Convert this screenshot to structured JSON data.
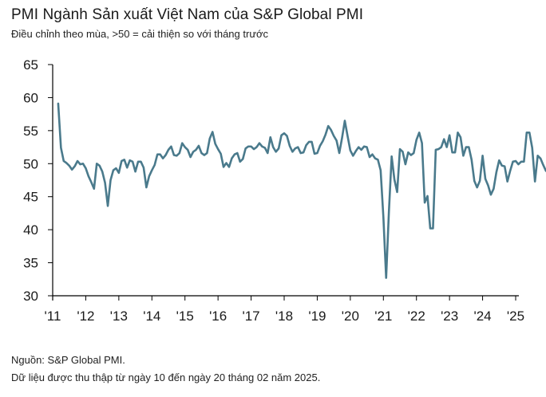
{
  "title": "PMI Ngành Sản xuất Việt Nam của S&P Global PMI",
  "subtitle": "Điều chỉnh theo mùa, >50 = cải thiện so với tháng trước",
  "footnote_source": "Nguồn: S&P Global PMI.",
  "footnote_collection": "Dữ liệu được thu thập từ ngày 10 đến ngày 20 tháng 02 năm 2025.",
  "colors": {
    "line": "#4a7a8c",
    "axis": "#000000"
  },
  "chart_data": {
    "type": "line",
    "title": "PMI Ngành Sản xuất Việt Nam của S&P Global PMI",
    "xlabel": "",
    "ylabel": "",
    "ylim": [
      30,
      65
    ],
    "yticks": [
      30,
      35,
      40,
      45,
      50,
      55,
      60,
      65
    ],
    "xtick_labels": [
      "'11",
      "'12",
      "'13",
      "'14",
      "'15",
      "'16",
      "'17",
      "'18",
      "'19",
      "'20",
      "'21",
      "'22",
      "'23",
      "'24",
      "'25"
    ],
    "grid": false,
    "series": [
      {
        "name": "",
        "start": "2011-03",
        "frequency": "monthly",
        "values": [
          59.1,
          52.4,
          50.4,
          50.1,
          49.7,
          49.1,
          49.6,
          50.4,
          49.9,
          50.0,
          49.3,
          48.1,
          47.2,
          46.2,
          50.0,
          49.7,
          48.8,
          47.1,
          43.6,
          47.5,
          49.0,
          49.3,
          48.6,
          50.4,
          50.6,
          49.4,
          50.5,
          50.3,
          48.8,
          50.3,
          50.3,
          49.4,
          46.4,
          48.1,
          49.0,
          49.8,
          51.4,
          51.4,
          50.8,
          51.3,
          52.1,
          52.6,
          51.3,
          51.2,
          51.6,
          53.1,
          52.5,
          52.1,
          51.0,
          51.8,
          52.1,
          52.7,
          51.6,
          51.3,
          51.6,
          53.8,
          54.8,
          53.0,
          52.2,
          51.5,
          49.5,
          50.1,
          49.5,
          50.8,
          51.4,
          51.6,
          50.3,
          50.7,
          52.3,
          52.6,
          52.6,
          52.2,
          52.5,
          53.1,
          52.6,
          52.4,
          51.6,
          54.0,
          52.5,
          51.8,
          52.3,
          54.3,
          54.6,
          54.2,
          52.7,
          51.8,
          52.3,
          52.5,
          51.6,
          51.7,
          52.8,
          53.3,
          53.3,
          51.5,
          51.6,
          52.7,
          53.4,
          54.4,
          55.7,
          55.1,
          54.2,
          53.5,
          51.6,
          53.9,
          56.5,
          54.2,
          52.0,
          51.2,
          51.9,
          52.5,
          52.1,
          52.6,
          52.5,
          51.0,
          51.4,
          50.8,
          50.6,
          49.0,
          41.9,
          32.7,
          42.7,
          51.1,
          47.6,
          45.7,
          52.2,
          51.8,
          49.9,
          51.7,
          51.3,
          51.6,
          53.6,
          54.7,
          53.1,
          44.1,
          45.1,
          40.2,
          40.2,
          52.1,
          52.2,
          52.5,
          53.7,
          52.5,
          54.3,
          51.7,
          51.7,
          54.7,
          54.0,
          51.2,
          52.5,
          52.5,
          50.6,
          47.4,
          46.4,
          47.4,
          51.2,
          47.7,
          46.7,
          45.3,
          46.2,
          48.7,
          50.5,
          49.7,
          49.6,
          47.3,
          48.9,
          50.3,
          50.4,
          49.9,
          50.3,
          50.3,
          54.7,
          54.7,
          52.4,
          47.3,
          51.2,
          50.8,
          49.8,
          48.9,
          49.2
        ]
      }
    ]
  }
}
